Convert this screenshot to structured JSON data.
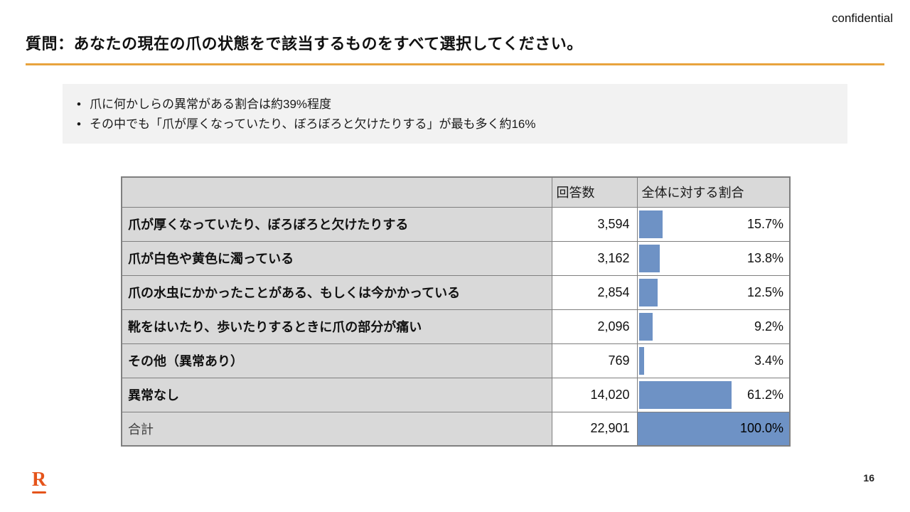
{
  "slide": {
    "confidential_label": "confidential",
    "title": "質問：あなたの現在の爪の状態をで該当するものをすべて選択してください。",
    "page_number": "16",
    "logo_letter": "R"
  },
  "summary_box": {
    "bullets": [
      "爪に何かしらの異常がある割合は約39%程度",
      "その中でも「爪が厚くなっていたり、ぼろぼろと欠けたりする」が最も多く約16%"
    ]
  },
  "chart_data": {
    "type": "table",
    "title": "爪の状態に関する回答集計",
    "columns": [
      "",
      "回答数",
      "全体に対する割合"
    ],
    "rows": [
      {
        "label": "爪が厚くなっていたり、ぼろぼろと欠けたりする",
        "count": "3,594",
        "pct_label": "15.7%",
        "pct_value": 15.7
      },
      {
        "label": "爪が白色や黄色に濁っている",
        "count": "3,162",
        "pct_label": "13.8%",
        "pct_value": 13.8
      },
      {
        "label": "爪の水虫にかかったことがある、もしくは今かかっている",
        "count": "2,854",
        "pct_label": "12.5%",
        "pct_value": 12.5
      },
      {
        "label": "靴をはいたり、歩いたりするときに爪の部分が痛い",
        "count": "2,096",
        "pct_label": "9.2%",
        "pct_value": 9.2
      },
      {
        "label": "その他（異常あり）",
        "count": "769",
        "pct_label": "3.4%",
        "pct_value": 3.4
      },
      {
        "label": "異常なし",
        "count": "14,020",
        "pct_label": "61.2%",
        "pct_value": 61.2
      },
      {
        "label": "合計",
        "count": "22,901",
        "pct_label": "100.0%",
        "pct_value": 100.0,
        "is_total": true
      }
    ],
    "bar_axis_range": [
      0,
      100
    ],
    "legend": "none",
    "grid": "off"
  },
  "colors": {
    "title_rule": "#E8A33D",
    "summary_bg": "#F2F2F2",
    "table_header_bg": "#D9D9D9",
    "label_cell_bg": "#D9D9D9",
    "bar_color": "#6E92C5",
    "border": "#7F7F7F",
    "logo_color": "#E5541B"
  }
}
